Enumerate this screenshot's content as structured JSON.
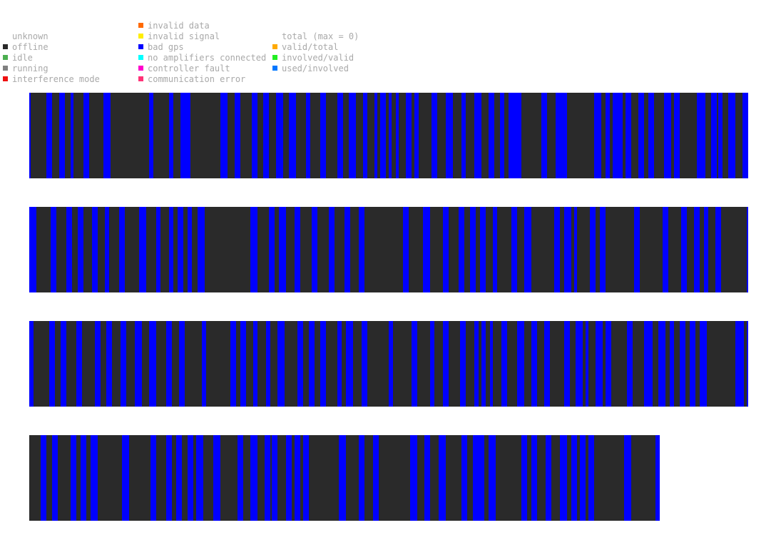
{
  "legend": {
    "status": [
      {
        "label": "unknown",
        "color": null
      },
      {
        "label": "offline",
        "color": "#2a2a2a"
      },
      {
        "label": "idle",
        "color": "#4caf50"
      },
      {
        "label": "running",
        "color": "#808080"
      },
      {
        "label": "interference mode",
        "color": "#ee1111"
      }
    ],
    "errors": [
      {
        "label": "invalid data",
        "color": "#ff6a00"
      },
      {
        "label": "invalid signal",
        "color": "#ffee00"
      },
      {
        "label": "bad gps",
        "color": "#0000ff"
      },
      {
        "label": "no amplifiers connected",
        "color": "#00ffff"
      },
      {
        "label": "controller fault",
        "color": "#ff00cc"
      },
      {
        "label": "communication error",
        "color": "#ff3377"
      }
    ],
    "totals": [
      {
        "label": "total (max = 0)",
        "color": null
      },
      {
        "label": "valid/total",
        "color": "#ffaa00"
      },
      {
        "label": "involved/valid",
        "color": "#22ee22"
      },
      {
        "label": "used/involved",
        "color": "#0077ff"
      }
    ]
  },
  "chart_data": {
    "type": "heatmap",
    "state_colors": {
      "offline": "#2a2a2a",
      "bad gps": "#0000ff"
    },
    "rows": [
      {
        "length": 504,
        "bad_gps": [
          [
            0,
            1
          ],
          [
            12,
            16
          ],
          [
            21,
            25
          ],
          [
            29,
            31
          ],
          [
            38,
            42
          ],
          [
            52,
            57
          ],
          [
            84,
            87
          ],
          [
            98,
            101
          ],
          [
            106,
            110
          ],
          [
            109,
            113
          ],
          [
            134,
            139
          ],
          [
            144,
            148
          ],
          [
            156,
            160
          ],
          [
            164,
            168
          ],
          [
            173,
            178
          ],
          [
            182,
            187
          ],
          [
            194,
            197
          ],
          [
            204,
            208
          ],
          [
            216,
            220
          ],
          [
            224,
            229
          ],
          [
            234,
            237
          ],
          [
            242,
            244
          ],
          [
            246,
            250
          ],
          [
            252,
            254
          ],
          [
            257,
            259
          ],
          [
            264,
            268
          ],
          [
            270,
            273
          ],
          [
            282,
            286
          ],
          [
            292,
            297
          ],
          [
            303,
            306
          ],
          [
            312,
            317
          ],
          [
            322,
            326
          ],
          [
            330,
            333
          ],
          [
            336,
            340
          ],
          [
            340,
            345
          ],
          [
            359,
            363
          ],
          [
            369,
            374
          ],
          [
            374,
            377
          ],
          [
            396,
            401
          ],
          [
            404,
            407
          ],
          [
            409,
            413
          ],
          [
            412,
            416
          ],
          [
            418,
            422
          ],
          [
            427,
            431
          ],
          [
            434,
            438
          ],
          [
            445,
            450
          ],
          [
            452,
            456
          ],
          [
            468,
            474
          ],
          [
            478,
            482
          ],
          [
            483,
            486
          ],
          [
            490,
            495
          ],
          [
            500,
            504
          ]
        ]
      },
      {
        "length": 504,
        "bad_gps": [
          [
            0,
            5
          ],
          [
            15,
            19
          ],
          [
            26,
            30
          ],
          [
            34,
            38
          ],
          [
            44,
            48
          ],
          [
            53,
            56
          ],
          [
            63,
            67
          ],
          [
            77,
            82
          ],
          [
            89,
            92
          ],
          [
            98,
            101
          ],
          [
            104,
            108
          ],
          [
            111,
            114
          ],
          [
            118,
            123
          ],
          [
            155,
            160
          ],
          [
            168,
            172
          ],
          [
            175,
            180
          ],
          [
            186,
            190
          ],
          [
            198,
            202
          ],
          [
            210,
            214
          ],
          [
            221,
            225
          ],
          [
            231,
            235
          ],
          [
            262,
            266
          ],
          [
            276,
            281
          ],
          [
            290,
            294
          ],
          [
            301,
            305
          ],
          [
            309,
            313
          ],
          [
            316,
            320
          ],
          [
            325,
            328
          ],
          [
            338,
            342
          ],
          [
            347,
            352
          ],
          [
            368,
            372
          ],
          [
            375,
            380
          ],
          [
            382,
            384
          ],
          [
            393,
            397
          ],
          [
            400,
            404
          ],
          [
            424,
            428
          ],
          [
            444,
            448
          ],
          [
            457,
            461
          ],
          [
            466,
            470
          ],
          [
            473,
            476
          ],
          [
            481,
            485
          ],
          [
            503,
            504
          ]
        ]
      },
      {
        "length": 504,
        "bad_gps": [
          [
            0,
            3
          ],
          [
            14,
            18
          ],
          [
            22,
            26
          ],
          [
            33,
            37
          ],
          [
            46,
            50
          ],
          [
            54,
            58
          ],
          [
            64,
            68
          ],
          [
            74,
            79
          ],
          [
            84,
            89
          ],
          [
            96,
            100
          ],
          [
            105,
            109
          ],
          [
            121,
            124
          ],
          [
            141,
            145
          ],
          [
            148,
            152
          ],
          [
            157,
            160
          ],
          [
            166,
            169
          ],
          [
            174,
            179
          ],
          [
            188,
            192
          ],
          [
            196,
            200
          ],
          [
            204,
            208
          ],
          [
            216,
            219
          ],
          [
            222,
            227
          ],
          [
            233,
            237
          ],
          [
            252,
            255
          ],
          [
            268,
            272
          ],
          [
            281,
            284
          ],
          [
            290,
            294
          ],
          [
            302,
            306
          ],
          [
            312,
            315
          ],
          [
            317,
            320
          ],
          [
            323,
            325
          ],
          [
            331,
            335
          ],
          [
            342,
            347
          ],
          [
            352,
            356
          ],
          [
            361,
            365
          ],
          [
            375,
            379
          ],
          [
            383,
            388
          ],
          [
            390,
            392
          ],
          [
            397,
            402
          ],
          [
            404,
            408
          ],
          [
            419,
            423
          ],
          [
            431,
            437
          ],
          [
            441,
            446
          ],
          [
            449,
            452
          ],
          [
            456,
            460
          ],
          [
            463,
            467
          ],
          [
            470,
            475
          ],
          [
            495,
            501
          ],
          [
            503,
            504
          ]
        ]
      },
      {
        "length": 442,
        "bad_gps": [
          [
            8,
            12
          ],
          [
            16,
            20
          ],
          [
            29,
            33
          ],
          [
            36,
            40
          ],
          [
            43,
            48
          ],
          [
            65,
            70
          ],
          [
            85,
            89
          ],
          [
            96,
            100
          ],
          [
            103,
            107
          ],
          [
            111,
            115
          ],
          [
            117,
            122
          ],
          [
            129,
            134
          ],
          [
            146,
            150
          ],
          [
            155,
            160
          ],
          [
            165,
            169
          ],
          [
            170,
            174
          ],
          [
            180,
            184
          ],
          [
            186,
            190
          ],
          [
            192,
            196
          ],
          [
            217,
            222
          ],
          [
            231,
            235
          ],
          [
            241,
            245
          ],
          [
            267,
            272
          ],
          [
            277,
            281
          ],
          [
            287,
            292
          ],
          [
            303,
            307
          ],
          [
            311,
            315
          ],
          [
            315,
            319
          ],
          [
            322,
            327
          ],
          [
            345,
            349
          ],
          [
            352,
            356
          ],
          [
            362,
            366
          ],
          [
            372,
            377
          ],
          [
            380,
            384
          ],
          [
            386,
            390
          ],
          [
            392,
            396
          ],
          [
            417,
            422
          ],
          [
            439,
            442
          ]
        ]
      }
    ]
  }
}
